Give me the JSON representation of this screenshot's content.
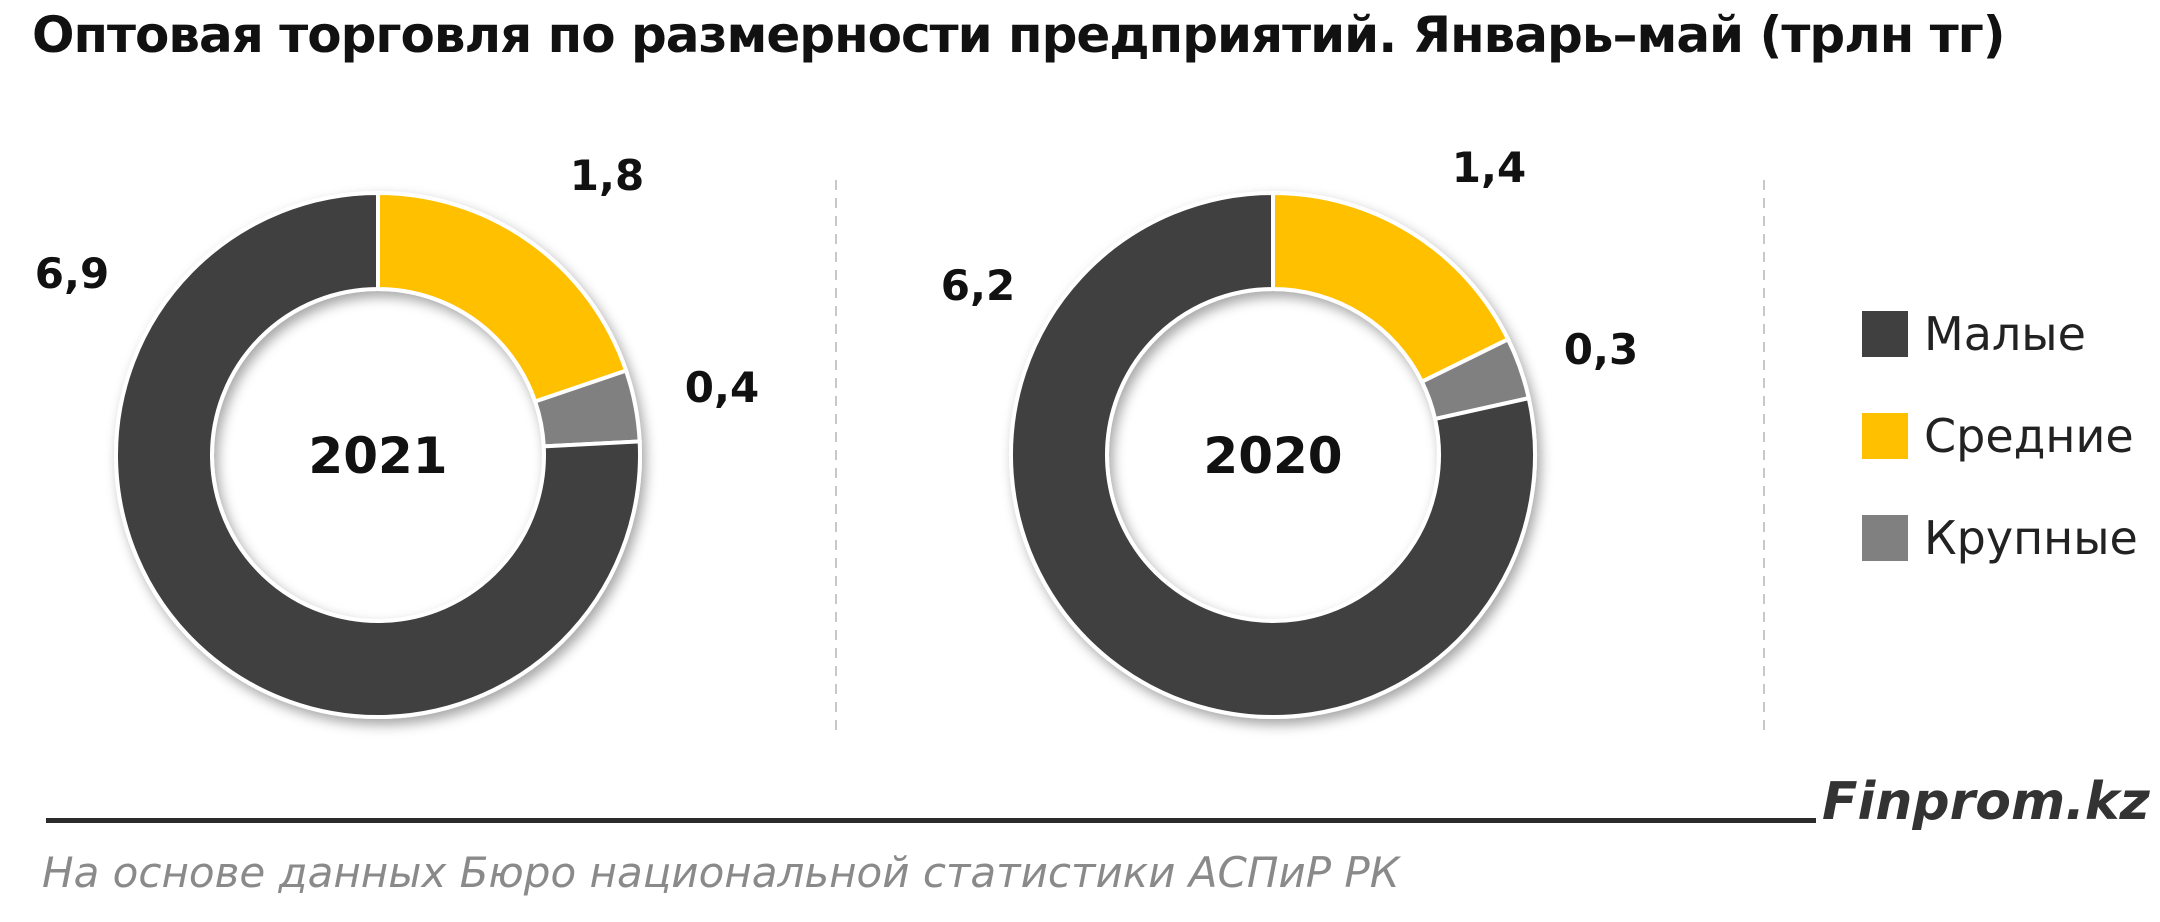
{
  "title": "Оптовая торговля по размерности предприятий. Январь–май (трлн тг)",
  "brand": "Finprom.kz",
  "source": "На основе данных Бюро национальной статистики АСПиР РК",
  "colors": {
    "small": "#404040",
    "medium": "#ffc000",
    "large": "#808080"
  },
  "chart_data": [
    {
      "type": "pie",
      "donut": true,
      "center_label": "2021",
      "categories": [
        "Малые",
        "Средние",
        "Крупные"
      ],
      "values": [
        6.9,
        1.8,
        0.4
      ],
      "data_labels": [
        "6,9",
        "1,8",
        "0,4"
      ]
    },
    {
      "type": "pie",
      "donut": true,
      "center_label": "2020",
      "categories": [
        "Малые",
        "Средние",
        "Крупные"
      ],
      "values": [
        6.2,
        1.4,
        0.3
      ],
      "data_labels": [
        "6,2",
        "1,4",
        "0,3"
      ]
    }
  ],
  "legend": {
    "position": "right",
    "items": [
      {
        "label": "Малые",
        "color": "#404040"
      },
      {
        "label": "Средние",
        "color": "#ffc000"
      },
      {
        "label": "Крупные",
        "color": "#808080"
      }
    ]
  }
}
